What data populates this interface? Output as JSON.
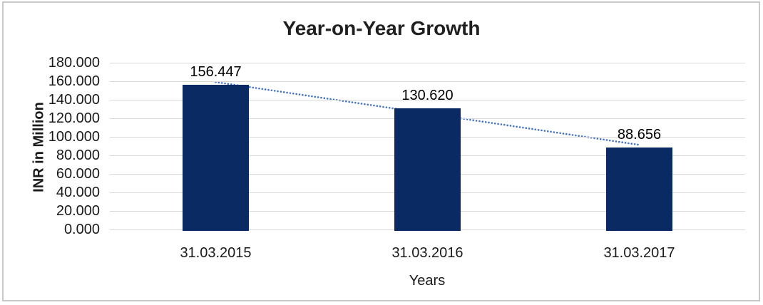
{
  "chart_data": {
    "type": "bar",
    "title": "Year-on-Year Growth",
    "xlabel": "Years",
    "ylabel": "INR in Million",
    "categories": [
      "31.03.2015",
      "31.03.2016",
      "31.03.2017"
    ],
    "values": [
      156.447,
      130.62,
      88.656
    ],
    "data_labels": [
      "156.447",
      "130.620",
      "88.656"
    ],
    "ylim": [
      0,
      180
    ],
    "ytick_labels": [
      "180.000",
      "160.000",
      "140.000",
      "120.000",
      "100.000",
      "80.000",
      "60.000",
      "40.000",
      "20.000",
      "0.000"
    ],
    "ytick_values": [
      180,
      160,
      140,
      120,
      100,
      80,
      60,
      40,
      20,
      0
    ],
    "grid": true,
    "legend": "none",
    "bar_color": "#0a2a63",
    "trendline": {
      "type": "linear",
      "style": "dotted",
      "color": "#4472c4"
    },
    "frame_color": "#c9c9c9",
    "gridline_color": "#d9d9d9"
  }
}
